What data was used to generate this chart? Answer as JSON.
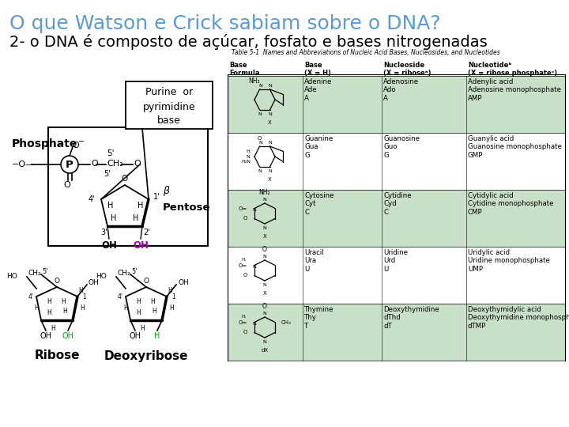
{
  "title": "O que Watson e Crick sabiam sobre o DNA?",
  "title_color": "#5B9BD5",
  "title_fontsize": 18,
  "subtitle": "2- o DNA é composto de açúcar, fosfato e bases nitrogenadas",
  "subtitle_fontsize": 14,
  "subtitle_color": "#000000",
  "bg_color": "#ffffff",
  "fig_width": 7.2,
  "fig_height": 5.4,
  "dpi": 100,
  "table_title": "Table 5-1  Names and Abbreviations of Nucleic Acid Bases, Nucleosides, and Nucleotides",
  "col_headers": [
    "Base\nFormula",
    "Base\n(X = H)",
    "Nucleoside\n(X = riboseᵃ)",
    "Nucleotideᵇ\n(X = ribose phosphateᶜ)"
  ],
  "rows": [
    {
      "base": "Adenine\nAde\nA",
      "nucleoside": "Adenosine\nAdo\nA",
      "nucleotide": "Adenylic acid\nAdenosine monophosphate\nAMP",
      "bg": "#C8DFC8"
    },
    {
      "base": "Guanine\nGua\nG",
      "nucleoside": "Guanosine\nGuo\nG",
      "nucleotide": "Guanylic acid\nGuanosine monophosphate\nGMP",
      "bg": "#FFFFFF"
    },
    {
      "base": "Cytosine\nCyt\nC",
      "nucleoside": "Cytidine\nCyd\nC",
      "nucleotide": "Cytidylic acid\nCytidine monophosphate\nCMP",
      "bg": "#C8DFC8"
    },
    {
      "base": "Uracil\nUra\nU",
      "nucleoside": "Uridine\nUrd\nU",
      "nucleotide": "Uridylic acid\nUridine monophosphate\nUMP",
      "bg": "#FFFFFF"
    },
    {
      "base": "Thymine\nThy\nT",
      "nucleoside": "Deoxythymidine\ndThd\ndT",
      "nucleotide": "Deoxythymidylic acid\nDeoxythymidine monophosphate\ndTMP",
      "bg": "#C8DFC8"
    }
  ]
}
